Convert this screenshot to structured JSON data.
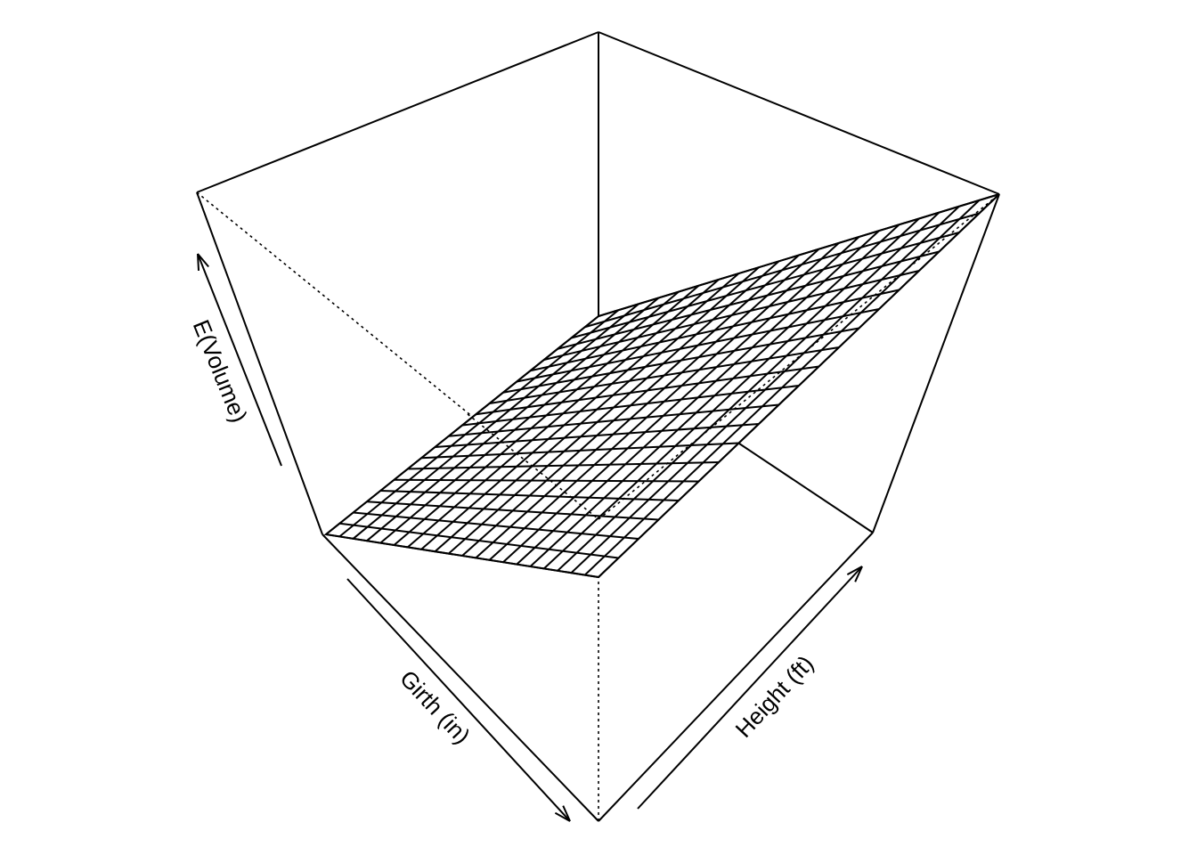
{
  "chart_data": {
    "type": "surface",
    "xlabel": "Girth (in)",
    "ylabel": "Height (ft)",
    "zlabel": "E(Volume)",
    "mesh_divisions": 20,
    "box": true,
    "ticks": false,
    "line_color": "#000000",
    "background": "#ffffff"
  }
}
